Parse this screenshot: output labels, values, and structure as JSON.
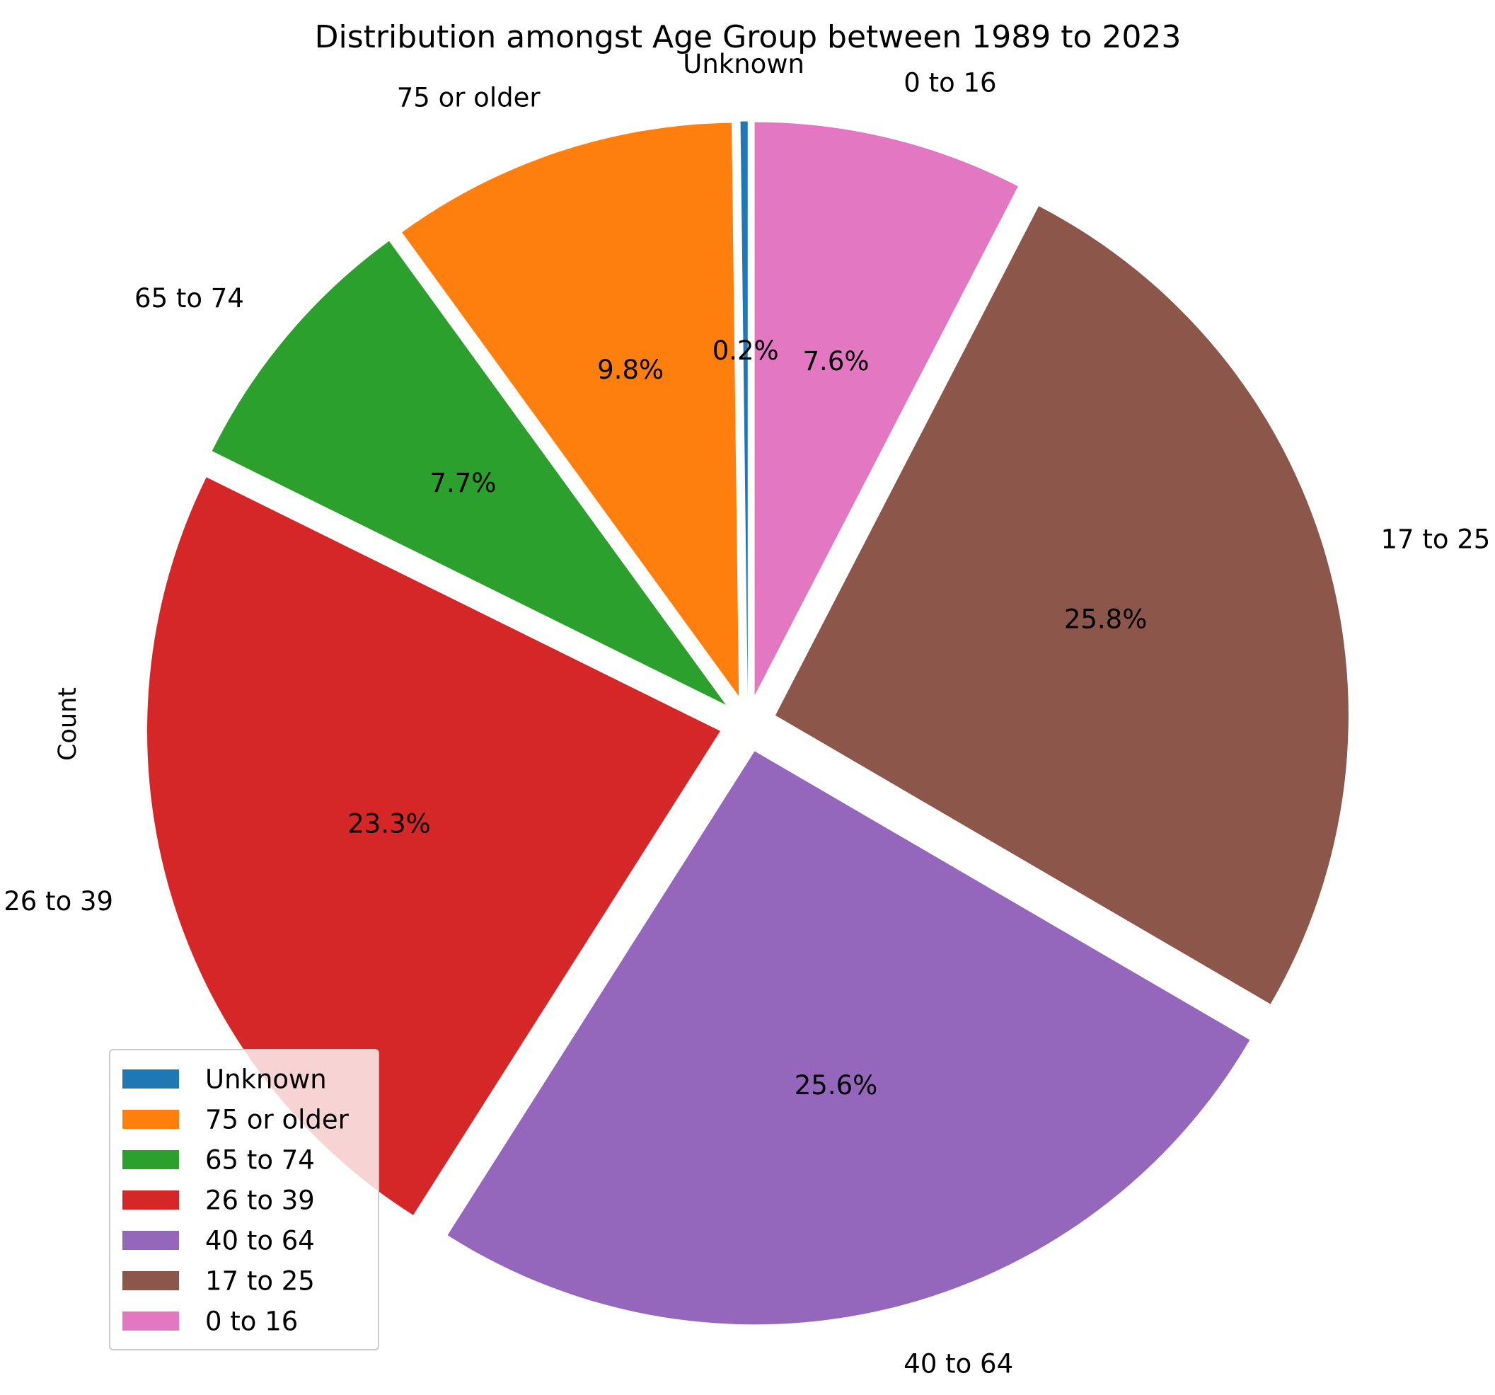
{
  "chart_data": {
    "type": "pie",
    "title": "Distribution amongst Age Group between 1989 to 2023",
    "ylabel": "Count",
    "start_angle_deg": 90,
    "direction": "counterclockwise",
    "exploded": true,
    "slices": [
      {
        "label": "Unknown",
        "value": 0.2,
        "pct_label": "0.2%",
        "color": "#1f77b4"
      },
      {
        "label": "75 or older",
        "value": 9.8,
        "pct_label": "9.8%",
        "color": "#ff7f0e"
      },
      {
        "label": "65 to 74",
        "value": 7.7,
        "pct_label": "7.7%",
        "color": "#2ca02c"
      },
      {
        "label": "26 to 39",
        "value": 23.3,
        "pct_label": "23.3%",
        "color": "#d62728"
      },
      {
        "label": "40 to 64",
        "value": 25.6,
        "pct_label": "25.6%",
        "color": "#9467bd"
      },
      {
        "label": "17 to 25",
        "value": 25.8,
        "pct_label": "25.8%",
        "color": "#8c564b"
      },
      {
        "label": "0 to 16",
        "value": 7.6,
        "pct_label": "7.6%",
        "color": "#e377c2"
      }
    ],
    "legend": {
      "position": "lower-left",
      "entries": [
        "Unknown",
        "75 or older",
        "65 to 74",
        "26 to 39",
        "40 to 64",
        "17 to 25",
        "0 to 16"
      ]
    }
  }
}
